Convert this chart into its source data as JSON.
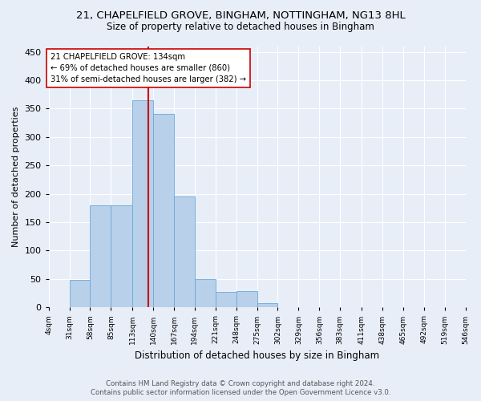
{
  "title_line1": "21, CHAPELFIELD GROVE, BINGHAM, NOTTINGHAM, NG13 8HL",
  "title_line2": "Size of property relative to detached houses in Bingham",
  "xlabel": "Distribution of detached houses by size in Bingham",
  "ylabel": "Number of detached properties",
  "bar_color": "#b8d0ea",
  "bar_edge_color": "#6aaad4",
  "background_color": "#e8eef8",
  "grid_color": "#ffffff",
  "bin_edges": [
    4,
    31,
    58,
    85,
    113,
    140,
    167,
    194,
    221,
    248,
    275,
    302,
    329,
    356,
    383,
    411,
    438,
    465,
    492,
    519,
    546
  ],
  "bin_labels": [
    "4sqm",
    "31sqm",
    "58sqm",
    "85sqm",
    "113sqm",
    "140sqm",
    "167sqm",
    "194sqm",
    "221sqm",
    "248sqm",
    "275sqm",
    "302sqm",
    "329sqm",
    "356sqm",
    "383sqm",
    "411sqm",
    "438sqm",
    "465sqm",
    "492sqm",
    "519sqm",
    "546sqm"
  ],
  "bar_heights": [
    1,
    48,
    180,
    180,
    365,
    340,
    195,
    50,
    27,
    28,
    8,
    1,
    0,
    0,
    0,
    0,
    0,
    0,
    0,
    1
  ],
  "property_size": 134,
  "property_line_color": "#cc0000",
  "annotation_text": "21 CHAPELFIELD GROVE: 134sqm\n← 69% of detached houses are smaller (860)\n31% of semi-detached houses are larger (382) →",
  "annotation_box_color": "#ffffff",
  "annotation_box_edge": "#cc0000",
  "ylim": [
    0,
    460
  ],
  "yticks": [
    0,
    50,
    100,
    150,
    200,
    250,
    300,
    350,
    400,
    450
  ],
  "footer_line1": "Contains HM Land Registry data © Crown copyright and database right 2024.",
  "footer_line2": "Contains public sector information licensed under the Open Government Licence v3.0."
}
